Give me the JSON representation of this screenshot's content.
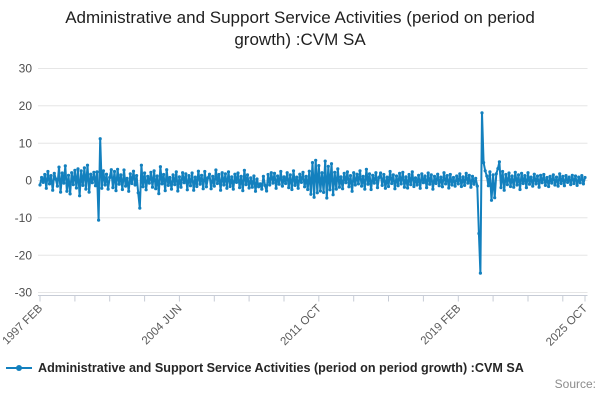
{
  "title": "Administrative and Support Service Activities (period on period growth) :CVM SA",
  "legend": {
    "label": "Administrative and Support Service Activities (period on period growth) :CVM SA"
  },
  "source_label": "Source:",
  "chart_data": {
    "type": "line",
    "title": "Administrative and Support Service Activities (period on period growth) :CVM SA",
    "frequency": "monthly",
    "x_start": "1997 FEB",
    "x_end": "2025 OCT",
    "x_tick_labels": [
      "1997 FEB",
      "2004 JUN",
      "2011 OCT",
      "2019 FEB",
      "2025 OCT"
    ],
    "x_tick_label_indices": [
      0,
      88,
      176,
      264,
      344
    ],
    "x_minor_tick_step_months": 22,
    "y_ticks": [
      30,
      20,
      10,
      0,
      -10,
      -20,
      -30
    ],
    "ylim": [
      -30,
      30
    ],
    "grid": "horizontal",
    "legend_position": "bottom-left",
    "line_color": "#1380be",
    "grid_color": "#e6e6e6",
    "axis_color": "#c7ccd6",
    "label_color": "#4d4d4d",
    "values": [
      -1.2,
      0.8,
      -0.5,
      1.6,
      -2.1,
      2.4,
      -0.9,
      1.3,
      -2.6,
      1.9,
      0.4,
      -1.5,
      3.6,
      -3.1,
      2.0,
      -0.7,
      3.9,
      -2.9,
      1.4,
      -3.6,
      2.1,
      -1.1,
      2.7,
      -2.0,
      3.1,
      -4.1,
      2.6,
      -1.3,
      3.4,
      -2.3,
      4.1,
      -3.1,
      1.7,
      -0.6,
      2.2,
      -1.4,
      2.3,
      -10.6,
      11.2,
      -2.1,
      2.6,
      -1.2,
      1.7,
      -2.3,
      0.8,
      2.9,
      -1.9,
      2.4,
      -2.7,
      3.0,
      -1.0,
      1.5,
      -2.4,
      2.8,
      -1.5,
      0.6,
      -2.9,
      1.8,
      -0.8,
      2.5,
      -1.2,
      1.3,
      -3.3,
      -7.4,
      4.1,
      -1.7,
      2.0,
      -2.5,
      1.1,
      -0.7,
      2.2,
      -1.8,
      2.6,
      -2.2,
      1.2,
      -3.5,
      3.7,
      -0.9,
      1.6,
      -2.7,
      2.9,
      -1.3,
      0.8,
      -2.3,
      1.5,
      -1.1,
      2.3,
      -2.8,
      1.0,
      -1.8,
      2.1,
      -0.6,
      1.8,
      -2.5,
      1.3,
      -1.4,
      2.0,
      -2.6,
      0.9,
      -1.6,
      2.5,
      -1.0,
      1.4,
      -2.2,
      2.4,
      -1.7,
      0.7,
      1.7,
      -2.2,
      1.1,
      -1.5,
      2.8,
      -0.8,
      1.6,
      -2.6,
      2.1,
      -1.2,
      1.8,
      -2.1,
      2.3,
      -1.6,
      1.0,
      -2.3,
      1.7,
      -0.5,
      2.0,
      -1.9,
      1.1,
      -2.7,
      2.7,
      -1.1,
      1.5,
      -2.0,
      0.7,
      -1.8,
      1.2,
      -2.9,
      0.4,
      -1.7,
      -0.9,
      -2.3,
      1.1,
      -1.3,
      -2.8,
      1.6,
      -1.2,
      2.1,
      -0.7,
      1.9,
      -2.1,
      1.2,
      -1.0,
      2.4,
      -1.5,
      1.0,
      -0.8,
      2.1,
      -1.9,
      1.5,
      -2.4,
      2.6,
      -1.3,
      0.9,
      -2.1,
      1.7,
      -0.5,
      2.2,
      -1.7,
      1.1,
      -2.4,
      2.5,
      -3.7,
      4.8,
      -4.5,
      5.4,
      -3.3,
      4.0,
      -2.8,
      2.1,
      -3.2,
      5.2,
      -4.7,
      3.8,
      -2.5,
      4.5,
      -3.8,
      2.2,
      -2.3,
      3.1,
      -1.8,
      1.0,
      -2.2,
      1.9,
      -0.6,
      2.3,
      -1.7,
      1.3,
      -2.9,
      2.1,
      -1.2,
      1.7,
      -0.9,
      2.6,
      -1.5,
      1.1,
      -2.3,
      3.0,
      -1.0,
      1.8,
      -2.4,
      1.4,
      -0.7,
      2.1,
      -1.9,
      0.8,
      2.0,
      -1.3,
      1.6,
      -2.1,
      0.9,
      -1.6,
      2.4,
      -0.8,
      1.5,
      -2.2,
      1.2,
      -1.4,
      1.9,
      -0.9,
      2.2,
      -1.8,
      1.0,
      -2.0,
      1.6,
      -1.1,
      2.3,
      -1.6,
      0.7,
      -1.2,
      1.4,
      -2.1,
      1.8,
      -0.6,
      1.2,
      -1.9,
      2.0,
      -1.0,
      1.5,
      -2.3,
      1.1,
      -0.8,
      1.7,
      -1.4,
      0.9,
      -1.7,
      2.1,
      -0.9,
      1.3,
      -2.0,
      1.6,
      -1.2,
      0.8,
      -1.5,
      1.2,
      -0.9,
      1.8,
      -1.6,
      1.0,
      -1.3,
      1.9,
      -0.7,
      1.4,
      -1.8,
      1.1,
      -1.0,
      0.6,
      -1.5,
      -14.2,
      -24.8,
      18.1,
      4.8,
      2.6,
      1.2,
      -1.4,
      2.3,
      -5.3,
      1.5,
      -4.6,
      1.8,
      3.2,
      5.0,
      -1.9,
      2.4,
      -2.6,
      1.6,
      -1.1,
      2.0,
      -1.6,
      1.2,
      -1.8,
      2.2,
      -1.2,
      1.5,
      -2.4,
      1.9,
      -0.8,
      1.3,
      -1.9,
      2.1,
      -1.0,
      0.9,
      -1.5,
      1.7,
      -0.9,
      1.2,
      -1.8,
      1.4,
      -0.6,
      1.6,
      -1.3,
      0.8,
      -1.6,
      1.1,
      -0.7,
      1.5,
      -1.2,
      0.9,
      -1.5,
      1.8,
      -0.8,
      1.1,
      -1.4,
      1.3,
      -0.5,
      0.9,
      -1.1,
      1.4,
      -0.8,
      1.2,
      -1.3,
      0.9,
      -0.6,
      1.3,
      -0.9,
      0.8
    ]
  }
}
